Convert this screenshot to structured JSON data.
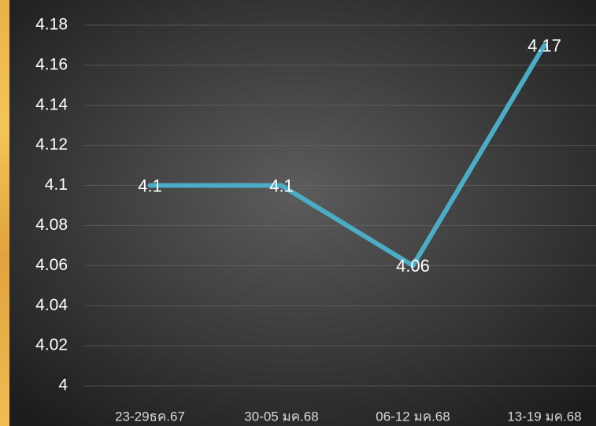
{
  "chart_data": {
    "type": "line",
    "categories": [
      "23-29ธค.67",
      "30-05 มค.68",
      "06-12 มค.68",
      "13-19 มค.68"
    ],
    "values": [
      4.1,
      4.1,
      4.06,
      4.17
    ],
    "color": "#4bacc6",
    "ylim": [
      4,
      4.18
    ],
    "yticks": [
      4,
      4.02,
      4.04,
      4.06,
      4.08,
      4.1,
      4.12,
      4.14,
      4.16,
      4.18
    ],
    "grid": true
  }
}
